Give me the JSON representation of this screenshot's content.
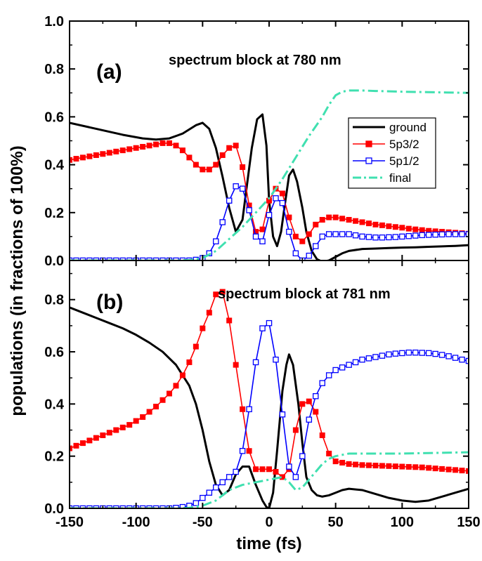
{
  "chart_data": [
    {
      "type": "line",
      "panel_label": "(a)",
      "annotation": "spectrum block at 780 nm",
      "xlim": [
        -150,
        150
      ],
      "ylim": [
        0.0,
        1.0
      ],
      "yticks": [
        0.0,
        0.2,
        0.4,
        0.6,
        0.8,
        1.0
      ],
      "ytick_labels": [
        "0.0",
        "0.2",
        "0.4",
        "0.6",
        "0.8",
        "1.0"
      ],
      "show_xtick_labels": false,
      "legend": true,
      "legend_position": "right-middle",
      "series": [
        {
          "name": "ground",
          "color": "#000000",
          "style": "solid",
          "marker": "none",
          "x": [
            -150,
            -130,
            -110,
            -95,
            -85,
            -75,
            -65,
            -55,
            -50,
            -45,
            -40,
            -35,
            -30,
            -25,
            -20,
            -17,
            -13,
            -9,
            -5,
            -2,
            0,
            3,
            6,
            9,
            12,
            15,
            18,
            21,
            25,
            28,
            32,
            36,
            40,
            45,
            50,
            55,
            60,
            70,
            80,
            90,
            100,
            110,
            120,
            130,
            140,
            150
          ],
          "y": [
            0.575,
            0.55,
            0.525,
            0.51,
            0.505,
            0.51,
            0.53,
            0.565,
            0.575,
            0.55,
            0.47,
            0.35,
            0.22,
            0.12,
            0.17,
            0.3,
            0.47,
            0.59,
            0.61,
            0.48,
            0.25,
            0.1,
            0.06,
            0.12,
            0.24,
            0.355,
            0.38,
            0.33,
            0.22,
            0.12,
            0.04,
            0.005,
            -0.005,
            0.0,
            0.015,
            0.03,
            0.04,
            0.048,
            0.05,
            0.052,
            0.054,
            0.055,
            0.057,
            0.059,
            0.061,
            0.064
          ]
        },
        {
          "name": "5p3/2",
          "color": "#ff0000",
          "style": "solid",
          "marker": "filled-square",
          "x": [
            -150,
            -145,
            -140,
            -135,
            -130,
            -125,
            -120,
            -115,
            -110,
            -105,
            -100,
            -95,
            -90,
            -85,
            -80,
            -75,
            -70,
            -65,
            -60,
            -55,
            -50,
            -45,
            -40,
            -35,
            -30,
            -25,
            -20,
            -15,
            -10,
            -5,
            0,
            5,
            10,
            15,
            20,
            25,
            30,
            35,
            40,
            45,
            50,
            55,
            60,
            65,
            70,
            75,
            80,
            85,
            90,
            95,
            100,
            105,
            110,
            115,
            120,
            125,
            130,
            135,
            140,
            145,
            150
          ],
          "y": [
            0.42,
            0.425,
            0.43,
            0.435,
            0.44,
            0.445,
            0.45,
            0.455,
            0.46,
            0.465,
            0.47,
            0.475,
            0.48,
            0.485,
            0.49,
            0.49,
            0.48,
            0.46,
            0.43,
            0.4,
            0.38,
            0.38,
            0.4,
            0.44,
            0.47,
            0.48,
            0.39,
            0.23,
            0.12,
            0.13,
            0.25,
            0.3,
            0.28,
            0.18,
            0.1,
            0.08,
            0.11,
            0.15,
            0.17,
            0.18,
            0.18,
            0.175,
            0.17,
            0.165,
            0.16,
            0.155,
            0.15,
            0.147,
            0.143,
            0.14,
            0.137,
            0.133,
            0.13,
            0.127,
            0.124,
            0.122,
            0.12,
            0.118,
            0.116,
            0.114,
            0.112
          ]
        },
        {
          "name": "5p1/2",
          "color": "#0000ff",
          "style": "solid",
          "marker": "open-square",
          "x": [
            -150,
            -145,
            -140,
            -135,
            -130,
            -125,
            -120,
            -115,
            -110,
            -105,
            -100,
            -95,
            -90,
            -85,
            -80,
            -75,
            -70,
            -65,
            -60,
            -55,
            -50,
            -45,
            -40,
            -35,
            -30,
            -25,
            -20,
            -15,
            -10,
            -5,
            0,
            5,
            10,
            15,
            20,
            25,
            30,
            35,
            40,
            45,
            50,
            55,
            60,
            65,
            70,
            75,
            80,
            85,
            90,
            95,
            100,
            105,
            110,
            115,
            120,
            125,
            130,
            135,
            140,
            145,
            150
          ],
          "y": [
            0.0,
            0.0,
            0.0,
            0.0,
            0.0,
            0.0,
            0.0,
            0.0,
            0.0,
            0.0,
            0.0,
            0.0,
            0.0,
            0.0,
            0.0,
            0.0,
            0.0,
            0.0,
            0.0,
            0.003,
            0.01,
            0.03,
            0.08,
            0.16,
            0.25,
            0.31,
            0.3,
            0.21,
            0.1,
            0.08,
            0.19,
            0.26,
            0.24,
            0.12,
            0.03,
            0.0,
            0.02,
            0.06,
            0.1,
            0.11,
            0.11,
            0.11,
            0.11,
            0.105,
            0.1,
            0.098,
            0.096,
            0.096,
            0.097,
            0.098,
            0.1,
            0.102,
            0.104,
            0.106,
            0.107,
            0.108,
            0.109,
            0.11,
            0.11,
            0.11,
            0.11
          ]
        },
        {
          "name": "final",
          "color": "#40e0b0",
          "style": "dashdot",
          "marker": "none",
          "x": [
            -150,
            -120,
            -90,
            -70,
            -60,
            -50,
            -40,
            -30,
            -20,
            -10,
            0,
            10,
            20,
            30,
            40,
            45,
            50,
            55,
            60,
            70,
            80,
            100,
            120,
            150
          ],
          "y": [
            0.0,
            0.0,
            0.0,
            0.0,
            0.002,
            0.01,
            0.04,
            0.09,
            0.14,
            0.2,
            0.26,
            0.34,
            0.43,
            0.52,
            0.6,
            0.65,
            0.69,
            0.705,
            0.71,
            0.71,
            0.708,
            0.705,
            0.703,
            0.7
          ]
        }
      ]
    },
    {
      "type": "line",
      "panel_label": "(b)",
      "annotation": "spectrum block at 781 nm",
      "xlim": [
        -150,
        150
      ],
      "ylim": [
        0.0,
        0.95
      ],
      "yticks": [
        0.0,
        0.2,
        0.4,
        0.6,
        0.8
      ],
      "ytick_labels": [
        "0.0",
        "0.2",
        "0.4",
        "0.6",
        "0.8"
      ],
      "xticks": [
        -150,
        -100,
        -50,
        0,
        50,
        100,
        150
      ],
      "xtick_labels": [
        "-150",
        "-100",
        "-50",
        "0",
        "50",
        "100",
        "150"
      ],
      "xlabel": "time (fs)",
      "show_xtick_labels": true,
      "legend": false,
      "series": [
        {
          "name": "ground",
          "color": "#000000",
          "style": "solid",
          "marker": "none",
          "x": [
            -150,
            -140,
            -130,
            -120,
            -110,
            -100,
            -90,
            -80,
            -70,
            -60,
            -55,
            -50,
            -45,
            -40,
            -35,
            -30,
            -25,
            -20,
            -15,
            -10,
            -5,
            -2,
            0,
            3,
            6,
            10,
            13,
            15,
            18,
            22,
            25,
            28,
            32,
            36,
            40,
            45,
            50,
            55,
            60,
            70,
            80,
            90,
            100,
            110,
            120,
            130,
            140,
            150
          ],
          "y": [
            0.77,
            0.75,
            0.73,
            0.71,
            0.69,
            0.665,
            0.635,
            0.6,
            0.55,
            0.47,
            0.4,
            0.3,
            0.18,
            0.09,
            0.05,
            0.07,
            0.13,
            0.16,
            0.16,
            0.09,
            0.03,
            0.005,
            0.0,
            0.06,
            0.22,
            0.45,
            0.55,
            0.59,
            0.55,
            0.4,
            0.25,
            0.12,
            0.07,
            0.05,
            0.045,
            0.05,
            0.06,
            0.07,
            0.075,
            0.07,
            0.055,
            0.04,
            0.03,
            0.025,
            0.03,
            0.045,
            0.06,
            0.075
          ]
        },
        {
          "name": "5p3/2",
          "color": "#ff0000",
          "style": "solid",
          "marker": "filled-square",
          "x": [
            -150,
            -145,
            -140,
            -135,
            -130,
            -125,
            -120,
            -115,
            -110,
            -105,
            -100,
            -95,
            -90,
            -85,
            -80,
            -75,
            -70,
            -65,
            -60,
            -55,
            -50,
            -45,
            -40,
            -35,
            -30,
            -25,
            -20,
            -15,
            -10,
            -5,
            0,
            5,
            10,
            15,
            20,
            25,
            30,
            35,
            40,
            45,
            50,
            55,
            60,
            65,
            70,
            75,
            80,
            85,
            90,
            95,
            100,
            105,
            110,
            115,
            120,
            125,
            130,
            135,
            140,
            145,
            150
          ],
          "y": [
            0.23,
            0.24,
            0.25,
            0.26,
            0.27,
            0.28,
            0.29,
            0.3,
            0.31,
            0.32,
            0.335,
            0.35,
            0.37,
            0.39,
            0.415,
            0.44,
            0.47,
            0.51,
            0.56,
            0.62,
            0.69,
            0.75,
            0.82,
            0.83,
            0.72,
            0.55,
            0.38,
            0.22,
            0.15,
            0.15,
            0.15,
            0.14,
            0.12,
            0.15,
            0.3,
            0.4,
            0.41,
            0.37,
            0.28,
            0.21,
            0.18,
            0.175,
            0.17,
            0.168,
            0.166,
            0.165,
            0.164,
            0.163,
            0.162,
            0.161,
            0.16,
            0.159,
            0.158,
            0.157,
            0.155,
            0.153,
            0.151,
            0.149,
            0.147,
            0.145,
            0.143
          ]
        },
        {
          "name": "5p1/2",
          "color": "#0000ff",
          "style": "solid",
          "marker": "open-square",
          "x": [
            -150,
            -145,
            -140,
            -135,
            -130,
            -125,
            -120,
            -115,
            -110,
            -105,
            -100,
            -95,
            -90,
            -85,
            -80,
            -75,
            -70,
            -65,
            -60,
            -55,
            -50,
            -45,
            -40,
            -35,
            -30,
            -25,
            -20,
            -15,
            -10,
            -5,
            0,
            5,
            10,
            15,
            20,
            25,
            30,
            35,
            40,
            45,
            50,
            55,
            60,
            65,
            70,
            75,
            80,
            85,
            90,
            95,
            100,
            105,
            110,
            115,
            120,
            125,
            130,
            135,
            140,
            145,
            150
          ],
          "y": [
            0.0,
            0.0,
            0.0,
            0.0,
            0.0,
            0.0,
            0.0,
            0.0,
            0.0,
            0.0,
            0.0,
            0.0,
            0.0,
            0.0,
            0.0,
            0.0,
            0.002,
            0.005,
            0.01,
            0.02,
            0.04,
            0.06,
            0.08,
            0.1,
            0.12,
            0.14,
            0.22,
            0.38,
            0.56,
            0.69,
            0.71,
            0.57,
            0.36,
            0.16,
            0.12,
            0.2,
            0.34,
            0.43,
            0.48,
            0.51,
            0.53,
            0.54,
            0.55,
            0.56,
            0.57,
            0.575,
            0.58,
            0.585,
            0.59,
            0.593,
            0.595,
            0.597,
            0.597,
            0.596,
            0.595,
            0.592,
            0.588,
            0.583,
            0.577,
            0.57,
            0.565
          ]
        },
        {
          "name": "final",
          "color": "#40e0b0",
          "style": "dashdot",
          "marker": "none",
          "x": [
            -150,
            -120,
            -90,
            -70,
            -60,
            -50,
            -40,
            -35,
            -30,
            -25,
            -20,
            -10,
            0,
            5,
            10,
            15,
            20,
            25,
            30,
            35,
            40,
            45,
            50,
            55,
            60,
            80,
            100,
            120,
            150
          ],
          "y": [
            0.0,
            0.0,
            0.0,
            0.0,
            0.002,
            0.01,
            0.03,
            0.05,
            0.07,
            0.08,
            0.09,
            0.1,
            0.11,
            0.115,
            0.12,
            0.1,
            0.07,
            0.08,
            0.11,
            0.14,
            0.17,
            0.19,
            0.2,
            0.205,
            0.21,
            0.21,
            0.21,
            0.212,
            0.215
          ]
        }
      ]
    }
  ],
  "figure": {
    "ylabel": "populations (in fractions of 100%)"
  }
}
